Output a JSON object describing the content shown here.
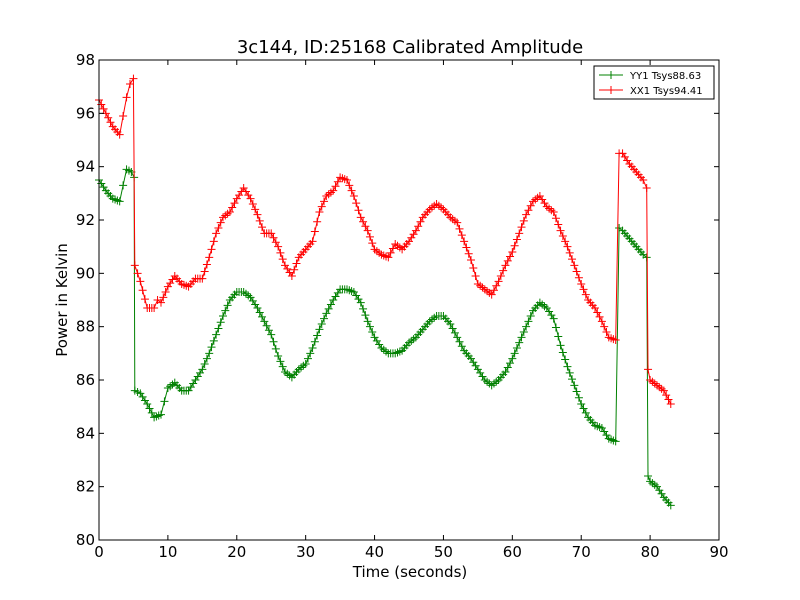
{
  "chart_data": {
    "type": "line",
    "title": "3c144, ID:25168 Calibrated Amplitude",
    "xlabel": "Time (seconds)",
    "ylabel": "Power in Kelvin",
    "xlim": [
      0,
      90
    ],
    "ylim": [
      80,
      98
    ],
    "x_ticks": [
      "0",
      "10",
      "20",
      "30",
      "40",
      "50",
      "60",
      "70",
      "80",
      "90"
    ],
    "y_ticks": [
      "80",
      "82",
      "84",
      "86",
      "88",
      "90",
      "92",
      "94",
      "96",
      "98"
    ],
    "grid": false,
    "legend_position": "top-right",
    "marker": "plus",
    "series": [
      {
        "name": "YY1 Tsys88.63",
        "color": "#008000",
        "points": [
          [
            0,
            93.5
          ],
          [
            1,
            93.1
          ],
          [
            2,
            92.8
          ],
          [
            3,
            92.7
          ],
          [
            3.5,
            93.3
          ],
          [
            4,
            93.9
          ],
          [
            4.7,
            93.8
          ],
          [
            5.1,
            93.6
          ],
          [
            5.2,
            85.6
          ],
          [
            6,
            85.5
          ],
          [
            7,
            85.1
          ],
          [
            8,
            84.6
          ],
          [
            9,
            84.7
          ],
          [
            9.5,
            85.2
          ],
          [
            10,
            85.7
          ],
          [
            11,
            85.9
          ],
          [
            12,
            85.6
          ],
          [
            13,
            85.6
          ],
          [
            14,
            86.0
          ],
          [
            15,
            86.4
          ],
          [
            16,
            87.0
          ],
          [
            17,
            87.7
          ],
          [
            18,
            88.4
          ],
          [
            19,
            89.0
          ],
          [
            20,
            89.3
          ],
          [
            21,
            89.3
          ],
          [
            22,
            89.1
          ],
          [
            23,
            88.7
          ],
          [
            24,
            88.2
          ],
          [
            25,
            87.7
          ],
          [
            26,
            86.9
          ],
          [
            27,
            86.3
          ],
          [
            28,
            86.1
          ],
          [
            29,
            86.4
          ],
          [
            30,
            86.6
          ],
          [
            31,
            87.2
          ],
          [
            32,
            87.9
          ],
          [
            33,
            88.5
          ],
          [
            34,
            89.0
          ],
          [
            35,
            89.4
          ],
          [
            36,
            89.4
          ],
          [
            37,
            89.3
          ],
          [
            38,
            88.9
          ],
          [
            39,
            88.2
          ],
          [
            40,
            87.6
          ],
          [
            41,
            87.2
          ],
          [
            42,
            87.0
          ],
          [
            43,
            87.0
          ],
          [
            44,
            87.1
          ],
          [
            45,
            87.4
          ],
          [
            46,
            87.6
          ],
          [
            47,
            87.9
          ],
          [
            48,
            88.2
          ],
          [
            49,
            88.4
          ],
          [
            50,
            88.4
          ],
          [
            51,
            88.1
          ],
          [
            52,
            87.6
          ],
          [
            53,
            87.1
          ],
          [
            54,
            86.8
          ],
          [
            55,
            86.4
          ],
          [
            56,
            86.0
          ],
          [
            57,
            85.8
          ],
          [
            58,
            86.0
          ],
          [
            59,
            86.3
          ],
          [
            60,
            86.8
          ],
          [
            61,
            87.4
          ],
          [
            62,
            88.0
          ],
          [
            63,
            88.6
          ],
          [
            64,
            88.9
          ],
          [
            65,
            88.7
          ],
          [
            66,
            88.3
          ],
          [
            67,
            87.3
          ],
          [
            68,
            86.5
          ],
          [
            69,
            85.8
          ],
          [
            70,
            85.1
          ],
          [
            71,
            84.6
          ],
          [
            72,
            84.3
          ],
          [
            73,
            84.2
          ],
          [
            74,
            83.8
          ],
          [
            75,
            83.7
          ],
          [
            75.5,
            91.7
          ],
          [
            76,
            91.6
          ],
          [
            77,
            91.3
          ],
          [
            78,
            91.0
          ],
          [
            79,
            90.7
          ],
          [
            79.5,
            90.6
          ],
          [
            79.7,
            82.4
          ],
          [
            80,
            82.2
          ],
          [
            81,
            82.0
          ],
          [
            82,
            81.6
          ],
          [
            83,
            81.3
          ]
        ]
      },
      {
        "name": "XX1 Tsys94.41",
        "color": "#ff0000",
        "points": [
          [
            0,
            96.5
          ],
          [
            1,
            96.0
          ],
          [
            2,
            95.5
          ],
          [
            3,
            95.2
          ],
          [
            3.5,
            95.9
          ],
          [
            4,
            96.6
          ],
          [
            4.5,
            97.1
          ],
          [
            5,
            97.3
          ],
          [
            5.2,
            90.3
          ],
          [
            6,
            89.7
          ],
          [
            7,
            88.7
          ],
          [
            8,
            88.7
          ],
          [
            8.5,
            89.0
          ],
          [
            9,
            88.9
          ],
          [
            10,
            89.5
          ],
          [
            11,
            89.9
          ],
          [
            12,
            89.6
          ],
          [
            13,
            89.5
          ],
          [
            14,
            89.8
          ],
          [
            15,
            89.8
          ],
          [
            16,
            90.6
          ],
          [
            17,
            91.5
          ],
          [
            18,
            92.1
          ],
          [
            19,
            92.3
          ],
          [
            20,
            92.8
          ],
          [
            21,
            93.2
          ],
          [
            22,
            92.8
          ],
          [
            23,
            92.2
          ],
          [
            24,
            91.5
          ],
          [
            25,
            91.5
          ],
          [
            26,
            91.0
          ],
          [
            27,
            90.3
          ],
          [
            28,
            89.9
          ],
          [
            29,
            90.6
          ],
          [
            30,
            90.9
          ],
          [
            31,
            91.2
          ],
          [
            32,
            92.3
          ],
          [
            33,
            92.9
          ],
          [
            34,
            93.1
          ],
          [
            35,
            93.6
          ],
          [
            36,
            93.5
          ],
          [
            37,
            92.9
          ],
          [
            38,
            92.1
          ],
          [
            39,
            91.6
          ],
          [
            40,
            90.9
          ],
          [
            41,
            90.7
          ],
          [
            42,
            90.6
          ],
          [
            43,
            91.1
          ],
          [
            44,
            90.9
          ],
          [
            45,
            91.2
          ],
          [
            46,
            91.6
          ],
          [
            47,
            92.1
          ],
          [
            48,
            92.4
          ],
          [
            49,
            92.6
          ],
          [
            50,
            92.4
          ],
          [
            51,
            92.1
          ],
          [
            52,
            91.9
          ],
          [
            53,
            91.2
          ],
          [
            54,
            90.5
          ],
          [
            55,
            89.6
          ],
          [
            56,
            89.4
          ],
          [
            57,
            89.2
          ],
          [
            58,
            89.7
          ],
          [
            59,
            90.3
          ],
          [
            60,
            90.8
          ],
          [
            61,
            91.5
          ],
          [
            62,
            92.2
          ],
          [
            63,
            92.7
          ],
          [
            64,
            92.9
          ],
          [
            65,
            92.5
          ],
          [
            66,
            92.3
          ],
          [
            67,
            91.6
          ],
          [
            68,
            91.0
          ],
          [
            69,
            90.3
          ],
          [
            70,
            89.6
          ],
          [
            71,
            89.0
          ],
          [
            72,
            88.7
          ],
          [
            73,
            88.2
          ],
          [
            74,
            87.6
          ],
          [
            75,
            87.5
          ],
          [
            75.5,
            94.5
          ],
          [
            76,
            94.5
          ],
          [
            77,
            94.1
          ],
          [
            78,
            93.8
          ],
          [
            79,
            93.5
          ],
          [
            79.5,
            93.2
          ],
          [
            79.7,
            86.4
          ],
          [
            80,
            86.0
          ],
          [
            81,
            85.8
          ],
          [
            82,
            85.6
          ],
          [
            83,
            85.1
          ]
        ]
      }
    ]
  }
}
